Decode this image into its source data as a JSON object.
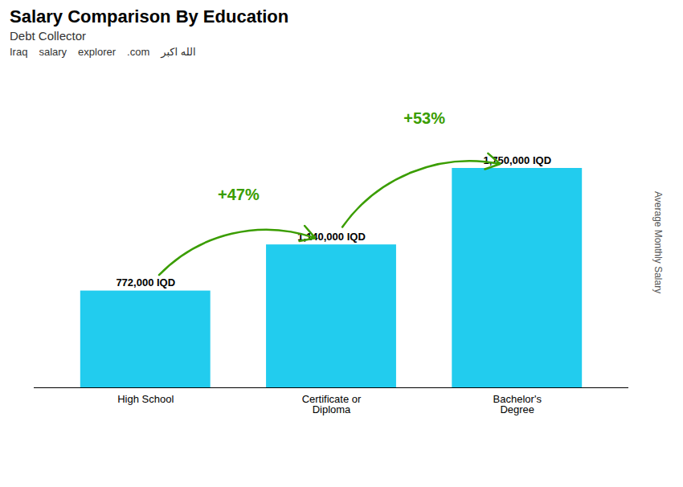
{
  "chart_data": {
    "type": "bar",
    "title": "Salary Comparison By Education",
    "subtitle": "Debt Collector",
    "y_label": "Average Monthly Salary",
    "categories": [
      "High School",
      "Certificate or\nDiploma",
      "Bachelor's\nDegree"
    ],
    "values": [
      772000,
      1140000,
      1750000
    ],
    "value_labels": [
      "772,000 IQD",
      "1,140,000 IQD",
      "1,750,000 IQD"
    ],
    "data_labels": true,
    "color": "#22ccee",
    "ylim": [
      0,
      2500000
    ],
    "tick_labels": "x",
    "grid": false,
    "annotations": [
      {
        "text": "+47%",
        "from": "High School",
        "to": "Certificate or\nDiploma"
      },
      {
        "text": "+53%",
        "from": "Certificate or\nDiploma",
        "to": "Bachelor's\nDegree"
      },
      {
        "text": "Iraq"
      },
      {
        "text": "salary"
      },
      {
        "text": "explorer"
      },
      {
        "text": ".com"
      },
      {
        "text": "الله اكبر"
      }
    ]
  }
}
